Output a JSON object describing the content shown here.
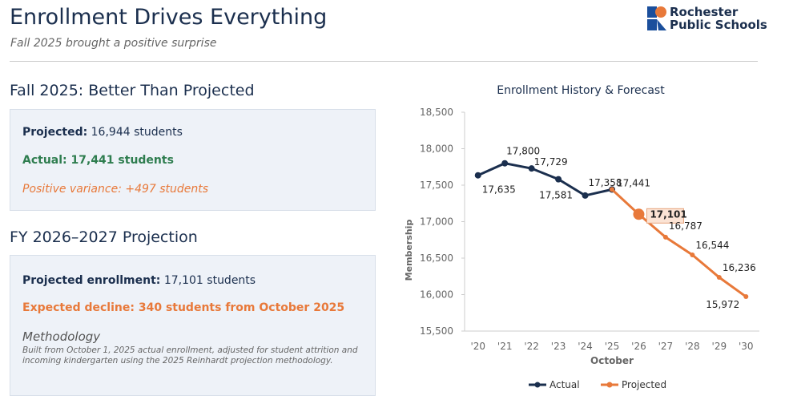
{
  "header": {
    "title": "Enrollment Drives Everything",
    "subtitle": "Fall 2025 brought a positive surprise",
    "logo": [
      "Rochester",
      "Public Schools"
    ]
  },
  "fall_2025": {
    "heading": "Fall 2025: Better Than Projected",
    "projected_label": "Projected:",
    "projected_value": "16,944 students",
    "actual_label": "Actual:",
    "actual_value": "17,441 students",
    "variance": "Positive variance: +497 students"
  },
  "fy_2026_2027": {
    "heading": "FY 2026–2027 Projection",
    "projected_label": "Projected enrollment:",
    "projected_value": "17,101 students",
    "decline_label": "Expected decline:",
    "decline_value": "340 students from October 2025",
    "methodology_title": "Methodology",
    "methodology_text": "Built from October 1, 2025 actual enrollment, adjusted for student attrition and incoming kindergarten using the 2025 Reinhardt projection methodology."
  },
  "chart_data": {
    "type": "line",
    "title": "Enrollment History & Forecast",
    "x_label": "October",
    "y_label": "Membership",
    "categories": [
      "'20",
      "'21",
      "'22",
      "'23",
      "'24",
      "'25",
      "'26",
      "'27",
      "'28",
      "'29",
      "'30"
    ],
    "series": [
      {
        "name": "Actual",
        "color": "#1b2f4e",
        "values": [
          17635,
          17800,
          17729,
          17581,
          17358,
          17441,
          null,
          null,
          null,
          null,
          null
        ],
        "value_labels": [
          "17,635",
          "17,800",
          "17,729",
          "17,581",
          "17,358",
          "17,441",
          null,
          null,
          null,
          null,
          null
        ]
      },
      {
        "name": "Projected",
        "color": "#e8793a",
        "values": [
          null,
          null,
          null,
          null,
          null,
          17441,
          17101,
          16787,
          16544,
          16236,
          15972
        ],
        "value_labels": [
          null,
          null,
          null,
          null,
          null,
          null,
          "17,101",
          "16,787",
          "16,544",
          "16,236",
          "15,972"
        ]
      }
    ],
    "ylim": [
      15500,
      18500
    ],
    "yticks": [
      {
        "value": 15500,
        "label": "15,500"
      },
      {
        "value": 16000,
        "label": "16,000"
      },
      {
        "value": 16500,
        "label": "16,500"
      },
      {
        "value": 17000,
        "label": "17,000"
      },
      {
        "value": 17500,
        "label": "17,500"
      },
      {
        "value": 18000,
        "label": "18,000"
      },
      {
        "value": 18500,
        "label": "18,500"
      }
    ],
    "grid": false,
    "legend": "bottom"
  }
}
